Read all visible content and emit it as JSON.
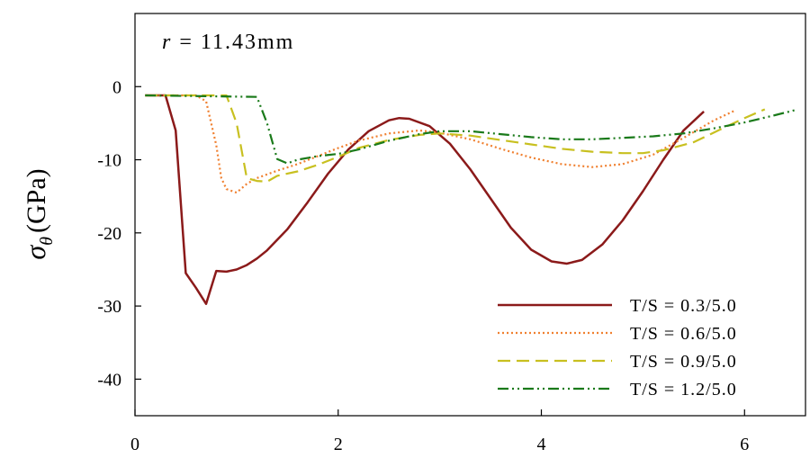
{
  "chart_data": {
    "type": "line",
    "title": "",
    "xlabel": "",
    "ylabel": {
      "symbol": "σ",
      "subscript": "θ",
      "unit": "(GPa)"
    },
    "xlim": [
      0,
      6.6
    ],
    "ylim": [
      -45,
      10
    ],
    "xticks": [
      "0",
      "2",
      "4",
      "6"
    ],
    "xtick_values": [
      0,
      2,
      4,
      6
    ],
    "yticks": [
      "0",
      "-10",
      "-20",
      "-30",
      "-40"
    ],
    "ytick_values": [
      0,
      -10,
      -20,
      -30,
      -40
    ],
    "grid": false,
    "legend_position": "bottom-right",
    "annotation": {
      "prefix": "r",
      "text": " = 11.43mm"
    },
    "series": [
      {
        "name": "T/S = 0.3/5.0",
        "color": "#8b1a1a",
        "dash": "solid",
        "points": [
          [
            0.1,
            -1.2
          ],
          [
            0.3,
            -1.2
          ],
          [
            0.4,
            -6
          ],
          [
            0.5,
            -25.5
          ],
          [
            0.6,
            -27.5
          ],
          [
            0.7,
            -29.7
          ],
          [
            0.8,
            -25.2
          ],
          [
            0.9,
            -25.3
          ],
          [
            1.0,
            -25.0
          ],
          [
            1.1,
            -24.4
          ],
          [
            1.2,
            -23.5
          ],
          [
            1.3,
            -22.4
          ],
          [
            1.5,
            -19.5
          ],
          [
            1.7,
            -15.8
          ],
          [
            1.9,
            -11.9
          ],
          [
            2.1,
            -8.6
          ],
          [
            2.3,
            -6.1
          ],
          [
            2.5,
            -4.6
          ],
          [
            2.6,
            -4.3
          ],
          [
            2.7,
            -4.4
          ],
          [
            2.9,
            -5.4
          ],
          [
            3.1,
            -7.8
          ],
          [
            3.3,
            -11.3
          ],
          [
            3.5,
            -15.3
          ],
          [
            3.7,
            -19.3
          ],
          [
            3.9,
            -22.3
          ],
          [
            4.1,
            -23.9
          ],
          [
            4.25,
            -24.2
          ],
          [
            4.4,
            -23.7
          ],
          [
            4.6,
            -21.6
          ],
          [
            4.8,
            -18.3
          ],
          [
            5.0,
            -14.3
          ],
          [
            5.2,
            -10.0
          ],
          [
            5.4,
            -6.0
          ],
          [
            5.6,
            -3.4
          ]
        ]
      },
      {
        "name": "T/S = 0.6/5.0",
        "color": "#f08030",
        "dash": "dotted",
        "points": [
          [
            0.1,
            -1.2
          ],
          [
            0.6,
            -1.2
          ],
          [
            0.7,
            -2
          ],
          [
            0.8,
            -8
          ],
          [
            0.85,
            -12.5
          ],
          [
            0.9,
            -14.0
          ],
          [
            1.0,
            -14.5
          ],
          [
            1.1,
            -13.3
          ],
          [
            1.2,
            -12.5
          ],
          [
            1.4,
            -11.5
          ],
          [
            1.6,
            -10.6
          ],
          [
            1.8,
            -9.5
          ],
          [
            2.0,
            -8.4
          ],
          [
            2.2,
            -7.4
          ],
          [
            2.5,
            -6.4
          ],
          [
            2.8,
            -6.0
          ],
          [
            3.0,
            -6.3
          ],
          [
            3.3,
            -7.2
          ],
          [
            3.6,
            -8.5
          ],
          [
            3.9,
            -9.7
          ],
          [
            4.2,
            -10.6
          ],
          [
            4.5,
            -11.0
          ],
          [
            4.8,
            -10.6
          ],
          [
            5.1,
            -9.3
          ],
          [
            5.4,
            -7.0
          ],
          [
            5.7,
            -4.6
          ],
          [
            5.9,
            -3.3
          ]
        ]
      },
      {
        "name": "T/S = 0.9/5.0",
        "color": "#c8c020",
        "dash": "dashed",
        "points": [
          [
            0.1,
            -1.2
          ],
          [
            0.9,
            -1.2
          ],
          [
            1.0,
            -5
          ],
          [
            1.1,
            -12.5
          ],
          [
            1.2,
            -12.9
          ],
          [
            1.3,
            -13.0
          ],
          [
            1.4,
            -12.2
          ],
          [
            1.6,
            -11.6
          ],
          [
            1.8,
            -10.7
          ],
          [
            2.0,
            -9.6
          ],
          [
            2.2,
            -8.4
          ],
          [
            2.5,
            -7.3
          ],
          [
            2.8,
            -6.6
          ],
          [
            3.0,
            -6.4
          ],
          [
            3.3,
            -6.7
          ],
          [
            3.6,
            -7.3
          ],
          [
            3.9,
            -7.9
          ],
          [
            4.2,
            -8.5
          ],
          [
            4.5,
            -8.9
          ],
          [
            4.8,
            -9.1
          ],
          [
            5.0,
            -9.1
          ],
          [
            5.2,
            -8.7
          ],
          [
            5.5,
            -7.6
          ],
          [
            5.8,
            -5.6
          ],
          [
            6.0,
            -4.3
          ],
          [
            6.2,
            -3.1
          ]
        ]
      },
      {
        "name": "T/S = 1.2/5.0",
        "color": "#1a7a1a",
        "dash": "dashdotdot",
        "points": [
          [
            0.1,
            -1.2
          ],
          [
            1.2,
            -1.4
          ],
          [
            1.3,
            -5
          ],
          [
            1.4,
            -9.9
          ],
          [
            1.5,
            -10.5
          ],
          [
            1.6,
            -10.0
          ],
          [
            1.8,
            -9.5
          ],
          [
            2.0,
            -9.2
          ],
          [
            2.2,
            -8.6
          ],
          [
            2.5,
            -7.4
          ],
          [
            2.8,
            -6.5
          ],
          [
            3.0,
            -6.1
          ],
          [
            3.3,
            -6.1
          ],
          [
            3.6,
            -6.5
          ],
          [
            3.9,
            -6.9
          ],
          [
            4.2,
            -7.2
          ],
          [
            4.5,
            -7.2
          ],
          [
            4.8,
            -7.0
          ],
          [
            5.1,
            -6.8
          ],
          [
            5.4,
            -6.4
          ],
          [
            5.7,
            -5.7
          ],
          [
            6.0,
            -4.9
          ],
          [
            6.3,
            -3.9
          ],
          [
            6.5,
            -3.2
          ]
        ]
      }
    ]
  }
}
